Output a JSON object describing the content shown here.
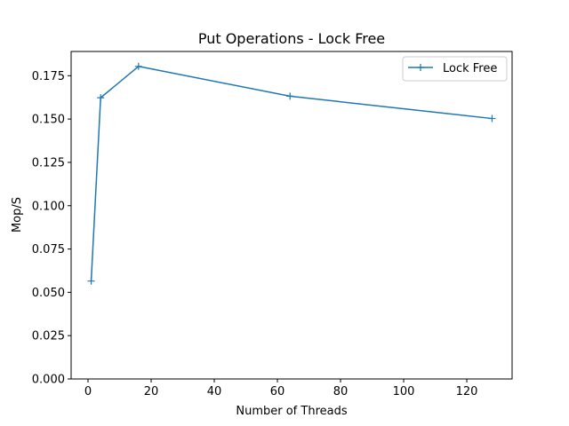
{
  "chart_data": {
    "type": "line",
    "title": "Put Operations - Lock Free",
    "xlabel": "Number of Threads",
    "ylabel": "Mop/S",
    "xlim": [
      -5.35,
      134.35
    ],
    "ylim": [
      0.0,
      0.189
    ],
    "x_ticks": [
      0,
      20,
      40,
      60,
      80,
      100,
      120
    ],
    "x_tick_labels": [
      "0",
      "20",
      "40",
      "60",
      "80",
      "100",
      "120"
    ],
    "y_ticks": [
      0.0,
      0.025,
      0.05,
      0.075,
      0.1,
      0.125,
      0.15,
      0.175
    ],
    "y_tick_labels": [
      "0.000",
      "0.025",
      "0.050",
      "0.075",
      "0.100",
      "0.125",
      "0.150",
      "0.175"
    ],
    "grid": false,
    "legend_position": "top-right",
    "series": [
      {
        "name": "Lock Free",
        "color": "#1f77b4",
        "marker": "plus",
        "x": [
          1,
          4,
          16,
          64,
          128
        ],
        "y": [
          0.0565,
          0.1623,
          0.1804,
          0.1632,
          0.1503
        ]
      }
    ]
  }
}
